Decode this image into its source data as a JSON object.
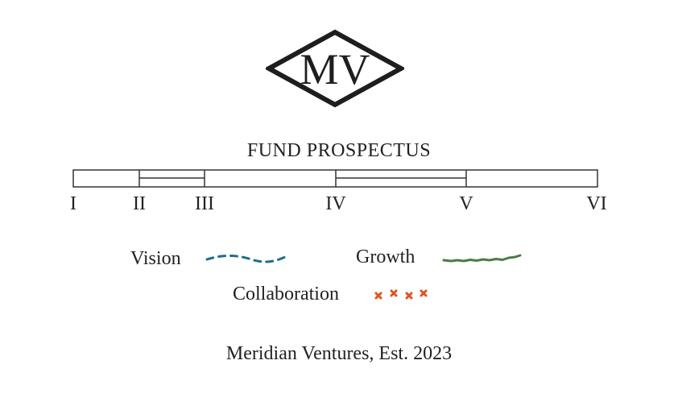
{
  "logo": {
    "monogram": "MV"
  },
  "title": "FUND PROSPECTUS",
  "timeline": {
    "labels": [
      "I",
      "II",
      "III",
      "IV",
      "V",
      "VI"
    ]
  },
  "legend": {
    "items": [
      {
        "label": "Vision",
        "icon": "dashed-line-icon",
        "color": "#1f6e8c"
      },
      {
        "label": "Growth",
        "icon": "wavy-line-icon",
        "color": "#4a7c45"
      },
      {
        "label": "Collaboration",
        "icon": "cross-marks-icon",
        "color": "#e0531d"
      }
    ]
  },
  "footer": "Meridian Ventures, Est. 2023"
}
